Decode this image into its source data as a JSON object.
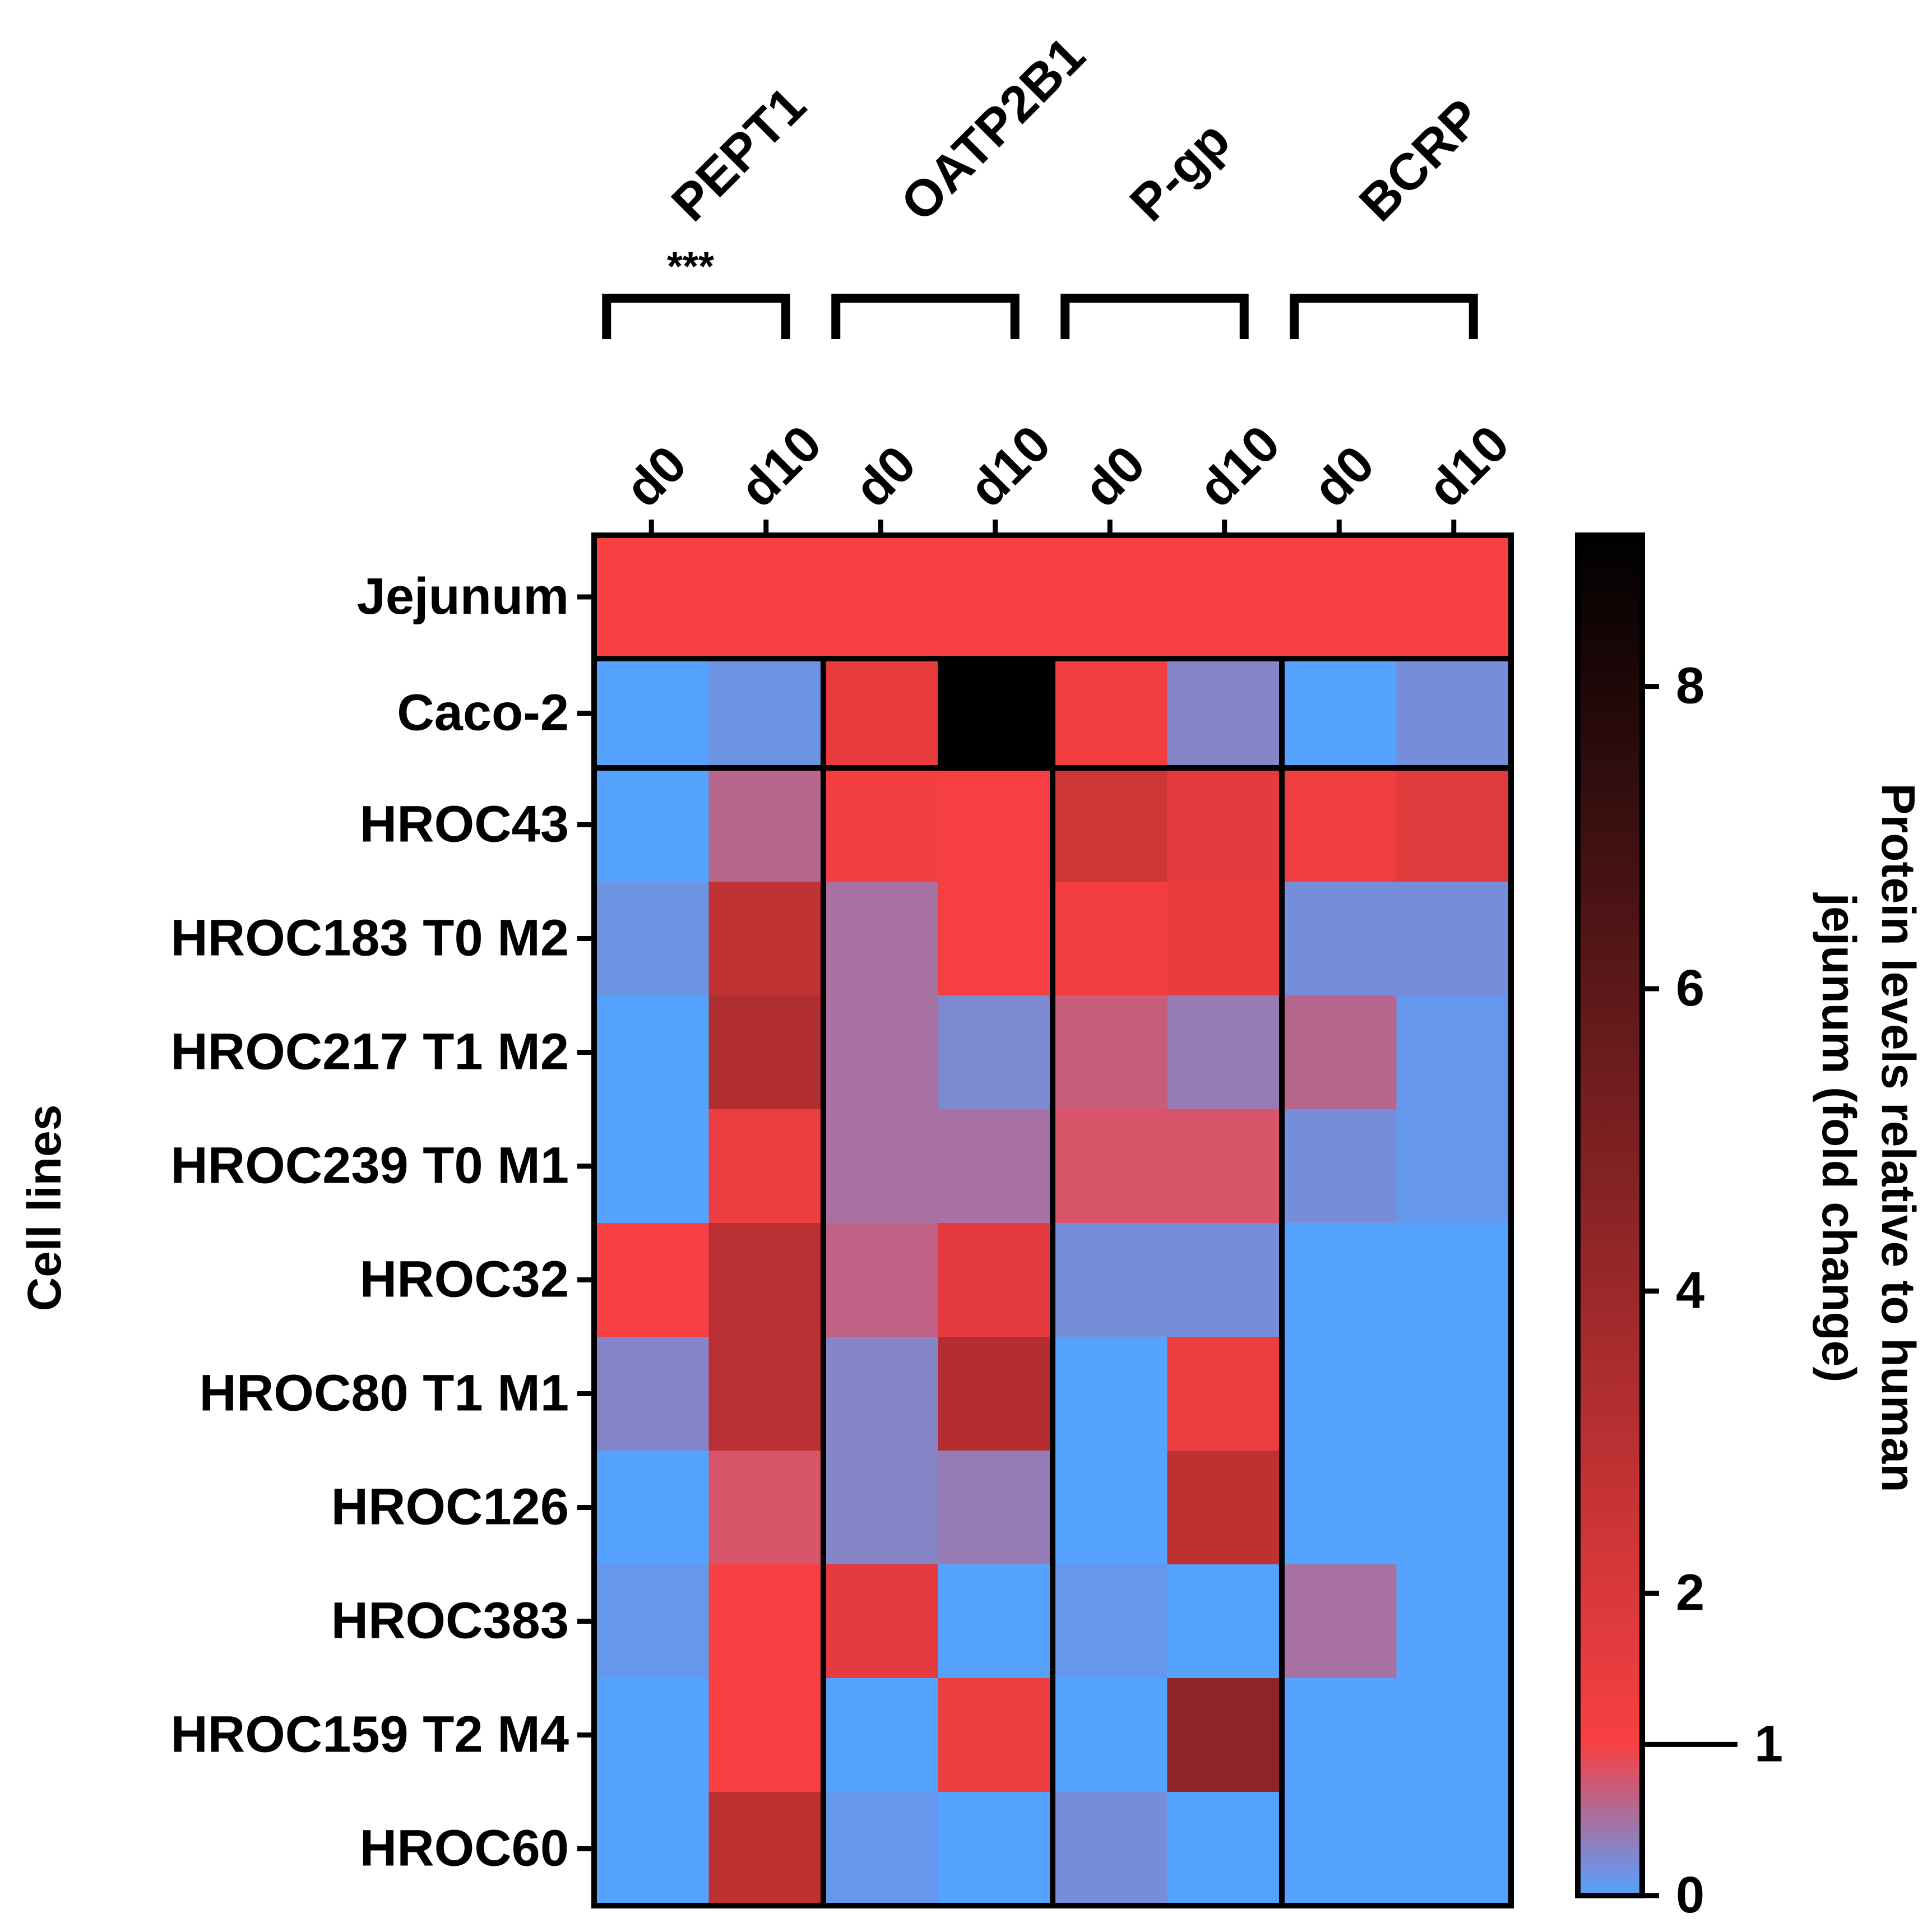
{
  "chart_data": {
    "type": "heatmap",
    "colorbar_label_lines": [
      "Protein levels relative to human",
      "jejunum (fold change)"
    ],
    "y_axis_label": "Cell lines",
    "colorbar_ticks": [
      0,
      1,
      2,
      4,
      6,
      8
    ],
    "colorbar_tick_labels": [
      "0",
      "1",
      "2",
      "4",
      "6",
      "8"
    ],
    "color_scale": {
      "min": 0,
      "max": 9,
      "stops": [
        {
          "v": 0,
          "color": "#55a2ff"
        },
        {
          "v": 1,
          "color": "#f84043"
        },
        {
          "v": 9,
          "color": "#000000"
        }
      ]
    },
    "proteins": [
      {
        "name": "PEPT1",
        "significance": "***"
      },
      {
        "name": "OATP2B1",
        "significance": ""
      },
      {
        "name": "P-gp",
        "significance": ""
      },
      {
        "name": "BCRP",
        "significance": ""
      }
    ],
    "columns": [
      "d0",
      "d10",
      "d0",
      "d10",
      "d0",
      "d10",
      "d0",
      "d10"
    ],
    "rows": [
      "Jejunum",
      "Caco-2",
      "HROC43",
      "HROC183 T0 M2",
      "HROC217 T1 M2",
      "HROC239 T0 M1",
      "HROC32",
      "HROC80 T1 M1",
      "HROC126",
      "HROC383",
      "HROC159 T2 M4",
      "HROC60"
    ],
    "values": [
      [
        1,
        1,
        1,
        1,
        1,
        1,
        1,
        1
      ],
      [
        0,
        0.15,
        1.5,
        9,
        1.2,
        0.3,
        0,
        0.2
      ],
      [
        0,
        0.6,
        1.2,
        1.1,
        2.4,
        1.6,
        1.3,
        1.8
      ],
      [
        0.15,
        2.8,
        0.5,
        1.1,
        1.2,
        1.5,
        0.2,
        0.2
      ],
      [
        0,
        3.3,
        0.5,
        0.25,
        0.7,
        0.4,
        0.6,
        0.1
      ],
      [
        0,
        1.4,
        0.5,
        0.5,
        0.8,
        0.8,
        0.2,
        0.1
      ],
      [
        1,
        3.0,
        0.65,
        1.6,
        0.2,
        0.2,
        0,
        0
      ],
      [
        0.3,
        3.0,
        0.3,
        3.2,
        0,
        1.4,
        0,
        0
      ],
      [
        0,
        0.8,
        0.3,
        0.4,
        0,
        2.9,
        0,
        0
      ],
      [
        0.1,
        1.0,
        1.6,
        0,
        0.1,
        0,
        0.5,
        0
      ],
      [
        0,
        1.0,
        0,
        1.4,
        0,
        4.4,
        0,
        0
      ],
      [
        0,
        2.9,
        0.1,
        0,
        0.2,
        0,
        0,
        0
      ]
    ]
  }
}
